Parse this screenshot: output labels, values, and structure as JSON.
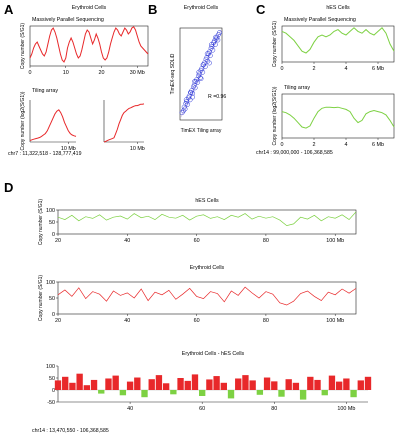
{
  "panel_labels": {
    "a": "A",
    "b": "B",
    "c": "C",
    "d": "D"
  },
  "colors": {
    "red": "#e8282a",
    "green": "#7dd143",
    "blue": "#2a35d8",
    "axis": "#222222"
  },
  "chart_data": [
    {
      "id": "A1",
      "type": "line",
      "title": "Erythroid Cells",
      "subtitle": "Massively Parallel Sequencing",
      "ylabel": "Copy number (S/G1)",
      "ylim": [
        1,
        2
      ],
      "xlim": [
        0,
        33
      ],
      "xticks": [
        0,
        10,
        20,
        30
      ],
      "xtick_labels": [
        "0",
        "10",
        "20",
        "30 Mb"
      ],
      "series": [
        {
          "color": "red",
          "x": [
            0,
            0.5,
            1,
            1.5,
            2,
            2.5,
            3,
            3.5,
            4,
            4.5,
            5,
            5.5,
            6,
            6.5,
            7,
            7.5,
            8,
            8.5,
            9,
            9.5,
            10,
            10.5,
            11,
            11.5,
            12,
            12.5,
            13,
            13.5,
            14,
            14.5,
            15,
            15.5,
            16,
            16.5,
            17,
            17.5,
            18,
            18.5,
            19,
            19.5,
            20,
            20.5,
            21,
            21.5,
            22,
            22.5,
            23,
            23.5,
            24,
            24.5,
            25,
            25.5,
            26,
            26.5,
            27,
            27.5,
            28,
            28.5,
            29,
            29.5,
            30,
            30.5,
            31,
            31.5,
            32,
            32.5,
            33
          ],
          "y": [
            1.2,
            1.3,
            1.45,
            1.55,
            1.6,
            1.5,
            1.4,
            1.3,
            1.25,
            1.35,
            1.55,
            1.75,
            1.9,
            1.95,
            1.85,
            1.7,
            1.5,
            1.3,
            1.15,
            1.1,
            1.2,
            1.45,
            1.6,
            1.7,
            1.6,
            1.45,
            1.3,
            1.2,
            1.25,
            1.4,
            1.6,
            1.8,
            1.9,
            1.85,
            1.7,
            1.55,
            1.65,
            1.8,
            1.7,
            1.55,
            1.35,
            1.2,
            1.15,
            1.2,
            1.35,
            1.55,
            1.7,
            1.85,
            1.95,
            1.9,
            1.8,
            1.75,
            1.85,
            1.95,
            1.9,
            1.8,
            1.85,
            1.95,
            1.98,
            1.9,
            1.75,
            1.6,
            1.5,
            1.45,
            1.4,
            1.35,
            1.3
          ]
        }
      ]
    },
    {
      "id": "A2",
      "type": "line",
      "subtitle": "Tiling array",
      "ylabel": "Copy number (log2(S/G1))",
      "ylim": [
        -0.5,
        1
      ],
      "xlim": [
        0,
        12
      ],
      "xticks": [
        10
      ],
      "xtick_labels": [
        "10 Mb"
      ],
      "series": [
        {
          "color": "red",
          "x": [
            0,
            0.5,
            1,
            1.5,
            2,
            2.5,
            3,
            3.5,
            4,
            4.5,
            5,
            5.5,
            6,
            6.5,
            7,
            7.5,
            8,
            8.5,
            9,
            9.5,
            10,
            10.5,
            11,
            11.5,
            12
          ],
          "y": [
            -0.45,
            -0.42,
            -0.4,
            -0.38,
            -0.36,
            -0.34,
            -0.3,
            -0.25,
            -0.2,
            -0.1,
            0.05,
            0.2,
            0.35,
            0.5,
            0.6,
            0.65,
            0.55,
            0.4,
            0.2,
            0.05,
            -0.1,
            -0.2,
            -0.25,
            -0.28,
            -0.3
          ]
        }
      ]
    },
    {
      "id": "A3",
      "type": "line",
      "ylim": [
        -0.5,
        1
      ],
      "xlim": [
        0,
        12
      ],
      "xticks": [
        10
      ],
      "xtick_labels": [
        "10 Mb"
      ],
      "series": [
        {
          "color": "red",
          "x": [
            0,
            0.5,
            1,
            1.5,
            2,
            2.5,
            3,
            3.5,
            4,
            4.5,
            5,
            5.5,
            6,
            6.5,
            7,
            7.5,
            8,
            8.5,
            9,
            9.5,
            10,
            10.5,
            11,
            11.5,
            12
          ],
          "y": [
            -0.5,
            -0.48,
            -0.45,
            -0.42,
            -0.4,
            -0.38,
            -0.35,
            -0.2,
            -0.05,
            0.15,
            0.3,
            0.45,
            0.55,
            0.6,
            0.65,
            0.7,
            0.72,
            0.75,
            0.78,
            0.8,
            0.8,
            0.82,
            0.85,
            0.85,
            0.86
          ]
        }
      ]
    },
    {
      "id": "B",
      "type": "scatter",
      "title": "Erythroid Cells",
      "ylabel": "TimEX-seq SOLiD",
      "xlabel": "TimEX Tiling array",
      "annotation": "R =0.96",
      "xlim": [
        0,
        1
      ],
      "ylim": [
        0,
        1
      ],
      "series": [
        {
          "color": "blue",
          "x": [
            0.05,
            0.08,
            0.1,
            0.12,
            0.14,
            0.16,
            0.18,
            0.2,
            0.22,
            0.24,
            0.26,
            0.28,
            0.3,
            0.32,
            0.34,
            0.36,
            0.38,
            0.4,
            0.42,
            0.44,
            0.46,
            0.48,
            0.5,
            0.52,
            0.54,
            0.56,
            0.58,
            0.6,
            0.62,
            0.64,
            0.66,
            0.68,
            0.7,
            0.72,
            0.74,
            0.76,
            0.78,
            0.8,
            0.82,
            0.84,
            0.86,
            0.88,
            0.9,
            0.92,
            0.94,
            0.15,
            0.25,
            0.35,
            0.45,
            0.55,
            0.65,
            0.75,
            0.85,
            0.3,
            0.5,
            0.7
          ],
          "y": [
            0.08,
            0.1,
            0.14,
            0.12,
            0.18,
            0.2,
            0.17,
            0.24,
            0.26,
            0.22,
            0.3,
            0.32,
            0.29,
            0.36,
            0.38,
            0.35,
            0.42,
            0.44,
            0.41,
            0.48,
            0.5,
            0.46,
            0.54,
            0.56,
            0.52,
            0.6,
            0.62,
            0.58,
            0.66,
            0.68,
            0.64,
            0.72,
            0.74,
            0.7,
            0.78,
            0.8,
            0.76,
            0.84,
            0.86,
            0.82,
            0.88,
            0.9,
            0.87,
            0.93,
            0.95,
            0.22,
            0.3,
            0.42,
            0.52,
            0.6,
            0.72,
            0.82,
            0.9,
            0.25,
            0.45,
            0.62
          ]
        }
      ]
    },
    {
      "id": "C1",
      "type": "line",
      "title": "hES Cells",
      "subtitle": "Massively Parallel Sequencing",
      "ylabel": "Copy number (S/G1)",
      "ylim": [
        1,
        2
      ],
      "xlim": [
        0,
        7
      ],
      "xticks": [
        0,
        2,
        4,
        6
      ],
      "xtick_labels": [
        "0",
        "2",
        "4",
        "6 Mb"
      ],
      "series": [
        {
          "color": "green",
          "x": [
            0,
            0.25,
            0.5,
            0.75,
            1,
            1.25,
            1.5,
            1.75,
            2,
            2.25,
            2.5,
            2.75,
            3,
            3.25,
            3.5,
            3.75,
            4,
            4.25,
            4.5,
            4.75,
            5,
            5.25,
            5.5,
            5.75,
            6,
            6.25,
            6.5,
            6.75,
            7
          ],
          "y": [
            1.85,
            1.8,
            1.7,
            1.6,
            1.45,
            1.3,
            1.25,
            1.35,
            1.55,
            1.7,
            1.75,
            1.7,
            1.75,
            1.85,
            1.9,
            1.8,
            1.75,
            1.85,
            1.95,
            1.85,
            1.8,
            1.9,
            1.8,
            1.75,
            1.85,
            1.95,
            1.8,
            1.5,
            1.3
          ]
        }
      ]
    },
    {
      "id": "C2",
      "type": "line",
      "subtitle": "Tiling array",
      "ylabel": "Copy number (log2(S/G1))",
      "ylim": [
        -1,
        1
      ],
      "xlim": [
        0,
        7
      ],
      "xticks": [
        0,
        2,
        4,
        6
      ],
      "xtick_labels": [
        "0",
        "2",
        "4",
        "6 Mb"
      ],
      "footnote": "chr14 : 99,000,000 - 106,368,585",
      "series": [
        {
          "color": "green",
          "x": [
            0,
            0.25,
            0.5,
            0.75,
            1,
            1.25,
            1.5,
            1.75,
            2,
            2.25,
            2.5,
            2.75,
            3,
            3.25,
            3.5,
            3.75,
            4,
            4.25,
            4.5,
            4.75,
            5,
            5.25,
            5.5,
            5.75,
            6,
            6.25,
            6.5,
            6.75,
            7
          ],
          "y": [
            0.2,
            0.15,
            0.05,
            -0.1,
            -0.3,
            -0.5,
            -0.55,
            -0.45,
            -0.1,
            0.2,
            0.35,
            0.4,
            0.4,
            0.38,
            0.4,
            0.35,
            0.3,
            0.2,
            -0.1,
            -0.3,
            -0.2,
            0.1,
            0.2,
            0.25,
            0.2,
            0.15,
            0.05,
            -0.2,
            -0.5
          ]
        }
      ]
    },
    {
      "id": "D1",
      "type": "line",
      "title": "hES Cells",
      "ylabel": "Copy number (S/G1)",
      "ylim": [
        0,
        100
      ],
      "yticks": [
        0,
        50,
        100
      ],
      "xlim": [
        20,
        106
      ],
      "xticks": [
        20,
        40,
        60,
        80,
        100
      ],
      "xtick_labels": [
        "20",
        "40",
        "60",
        "80",
        "100 Mb"
      ],
      "series": [
        {
          "color": "green",
          "x": [
            20,
            22,
            24,
            26,
            28,
            30,
            32,
            34,
            36,
            38,
            40,
            42,
            44,
            46,
            48,
            50,
            52,
            54,
            56,
            58,
            60,
            62,
            64,
            66,
            68,
            70,
            72,
            74,
            76,
            78,
            80,
            82,
            84,
            86,
            88,
            90,
            92,
            94,
            96,
            98,
            100,
            102,
            104,
            106
          ],
          "y": [
            70,
            60,
            78,
            55,
            72,
            65,
            80,
            58,
            70,
            75,
            62,
            85,
            68,
            74,
            60,
            82,
            70,
            66,
            78,
            58,
            74,
            80,
            65,
            72,
            60,
            78,
            70,
            85,
            62,
            74,
            66,
            72,
            58,
            35,
            42,
            70,
            62,
            78,
            55,
            72,
            66,
            80,
            60,
            92
          ]
        }
      ]
    },
    {
      "id": "D2",
      "type": "line",
      "title": "Erythroid Cells",
      "ylabel": "Copy number (S/G1)",
      "ylim": [
        0,
        100
      ],
      "yticks": [
        0,
        50,
        100
      ],
      "xlim": [
        20,
        106
      ],
      "xticks": [
        20,
        40,
        60,
        80,
        100
      ],
      "xtick_labels": [
        "20",
        "40",
        "60",
        "80",
        "100 Mb"
      ],
      "series": [
        {
          "color": "red",
          "x": [
            20,
            22,
            24,
            26,
            28,
            30,
            32,
            34,
            36,
            38,
            40,
            42,
            44,
            46,
            48,
            50,
            52,
            54,
            56,
            58,
            60,
            62,
            64,
            66,
            68,
            70,
            72,
            74,
            76,
            78,
            80,
            82,
            84,
            86,
            88,
            90,
            92,
            94,
            96,
            98,
            100,
            102,
            104,
            106
          ],
          "y": [
            60,
            75,
            55,
            82,
            48,
            70,
            62,
            40,
            72,
            58,
            66,
            50,
            78,
            42,
            68,
            60,
            74,
            46,
            62,
            80,
            55,
            48,
            70,
            64,
            38,
            72,
            58,
            84,
            66,
            50,
            70,
            62,
            35,
            28,
            40,
            64,
            72,
            55,
            42,
            68,
            60,
            78,
            65,
            80
          ]
        }
      ]
    },
    {
      "id": "D3",
      "type": "bar",
      "title": "Erythroid Cells - hES Cells",
      "ylim": [
        -50,
        100
      ],
      "yticks": [
        -50,
        0,
        50,
        100
      ],
      "xlim": [
        20,
        106
      ],
      "xticks": [
        40,
        60,
        80,
        100
      ],
      "xtick_labels": [
        "40",
        "60",
        "80",
        "100 Mb"
      ],
      "footnote": "chr14 : 13,470,550 - 106,368,585",
      "series": [
        {
          "color": "red/green by sign",
          "x": [
            20,
            22,
            24,
            26,
            28,
            30,
            32,
            34,
            36,
            38,
            40,
            42,
            44,
            46,
            48,
            50,
            52,
            54,
            56,
            58,
            60,
            62,
            64,
            66,
            68,
            70,
            72,
            74,
            76,
            78,
            80,
            82,
            84,
            86,
            88,
            90,
            92,
            94,
            96,
            98,
            100,
            102,
            104,
            106
          ],
          "y": [
            40,
            55,
            30,
            68,
            20,
            42,
            -15,
            48,
            60,
            -22,
            35,
            52,
            -30,
            45,
            62,
            28,
            -18,
            50,
            38,
            65,
            -25,
            44,
            58,
            30,
            -35,
            48,
            62,
            40,
            -20,
            52,
            36,
            -28,
            45,
            30,
            -40,
            55,
            42,
            -22,
            60,
            35,
            48,
            -30,
            40,
            55
          ]
        }
      ]
    }
  ],
  "footnotes": {
    "a": "chr7 : 11,322,518 - 128,777,419"
  }
}
